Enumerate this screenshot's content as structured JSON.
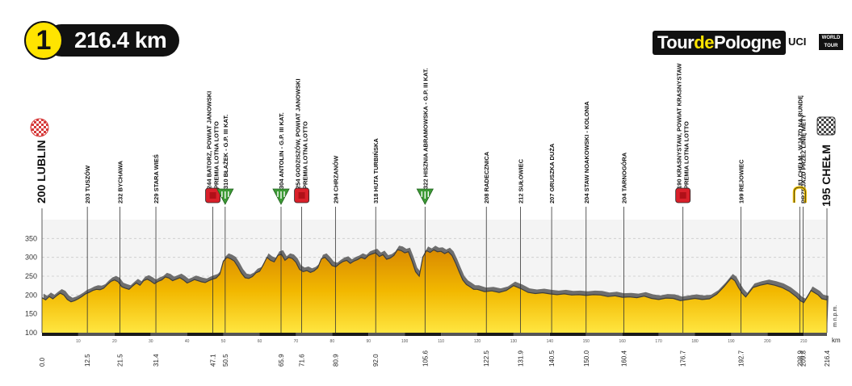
{
  "badge": {
    "stage_number": "1",
    "distance": "216.4 km"
  },
  "brand": {
    "tour_name_a": "Tour",
    "tour_name_b": "de",
    "tour_name_c": "Pologne",
    "uci": "UCI",
    "world_tour": "WORLD TOUR"
  },
  "chart_data": {
    "type": "area",
    "title": "",
    "xlabel": "km",
    "ylabel": "m n.p.m.",
    "xlim": [
      0,
      216.4
    ],
    "ylim": [
      100,
      400
    ],
    "y_ticks": [
      100,
      150,
      200,
      250,
      300,
      350
    ],
    "x_minor_ticks": [
      10,
      20,
      30,
      40,
      50,
      60,
      70,
      80,
      90,
      100,
      110,
      120,
      130,
      140,
      150,
      160,
      170,
      180,
      190,
      200,
      210
    ],
    "x_ticks": [
      {
        "value": 0.0,
        "label": "0.0"
      },
      {
        "value": 12.5,
        "label": "12.5"
      },
      {
        "value": 21.5,
        "label": "21.5"
      },
      {
        "value": 31.4,
        "label": "31.4"
      },
      {
        "value": 47.1,
        "label": "47.1"
      },
      {
        "value": 50.5,
        "label": "50.5"
      },
      {
        "value": 65.9,
        "label": "65.9"
      },
      {
        "value": 71.6,
        "label": "71.6"
      },
      {
        "value": 80.9,
        "label": "80.9"
      },
      {
        "value": 92.0,
        "label": "92.0"
      },
      {
        "value": 105.6,
        "label": "105.6"
      },
      {
        "value": 122.5,
        "label": "122.5"
      },
      {
        "value": 131.9,
        "label": "131.9"
      },
      {
        "value": 140.5,
        "label": "140.5"
      },
      {
        "value": 150.0,
        "label": "150.0"
      },
      {
        "value": 160.4,
        "label": "160.4"
      },
      {
        "value": 176.7,
        "label": "176.7"
      },
      {
        "value": 192.7,
        "label": "192.7"
      },
      {
        "value": 208.9,
        "label": "208.9"
      },
      {
        "value": 209.8,
        "label": "209.8"
      },
      {
        "value": 216.4,
        "label": "216.4"
      }
    ],
    "start": {
      "label": "200 LUBLIN"
    },
    "finish": {
      "label": "195 CHEŁM"
    },
    "waypoints": [
      {
        "km": 12.5,
        "label": "203 TUSZÓW",
        "marker": "none"
      },
      {
        "km": 21.5,
        "label": "232 BYCHAWA",
        "marker": "none"
      },
      {
        "km": 31.4,
        "label": "229 STARA WIEŚ",
        "marker": "none"
      },
      {
        "km": 47.1,
        "label": "244 BATORZ, POWIAT JANOWSKI",
        "sublabel": "PREMIA LOTNA LOTTO",
        "marker": "sprint"
      },
      {
        "km": 50.5,
        "label": "310 BŁAŻEK - G.P. III KAT.",
        "marker": "climb"
      },
      {
        "km": 65.9,
        "label": "304 ANTOLIN - G.P. III KAT.",
        "marker": "climb"
      },
      {
        "km": 71.6,
        "label": "254 GODZISZÓW, POWIAT JANOWSKI",
        "sublabel": "PREMIA LOTNA LOTTO",
        "marker": "sprint"
      },
      {
        "km": 80.9,
        "label": "294 CHRZANÓW",
        "marker": "none"
      },
      {
        "km": 92.0,
        "label": "318 HUTA TURBIŃSKA",
        "marker": "none"
      },
      {
        "km": 105.6,
        "label": "322 HISZNIA ABRAMOWSKA - G.P. III KAT.",
        "marker": "climb"
      },
      {
        "km": 122.5,
        "label": "208 RADECZNICA",
        "marker": "none"
      },
      {
        "km": 131.9,
        "label": "212 SUŁOWIEC",
        "marker": "none"
      },
      {
        "km": 140.5,
        "label": "207 GRUSZKA DUŻA",
        "marker": "none"
      },
      {
        "km": 150.0,
        "label": "204 STAW NOAKOWSKI - KOLONIA",
        "marker": "none"
      },
      {
        "km": 160.4,
        "label": "204 TARNOGÓRA",
        "marker": "none"
      },
      {
        "km": 176.7,
        "label": "190 KRASNYSTAW, POWIAT KRASNYSTAW",
        "sublabel": "PREMIA LOTNA LOTTO",
        "marker": "sprint"
      },
      {
        "km": 192.7,
        "label": "199 REJOWIEC",
        "marker": "none"
      },
      {
        "km": 208.9,
        "label": "181 CHEŁM - WJAZD NA RUNDĘ",
        "marker": "lap"
      },
      {
        "km": 209.8,
        "label": "PRZEJAZD PRZEZ LINIĘ METY",
        "marker": "none"
      }
    ],
    "elevation": {
      "x": [
        0,
        1,
        2,
        3,
        4,
        5,
        6,
        7,
        8,
        9,
        10,
        11,
        12,
        13,
        14,
        15,
        16,
        17,
        18,
        19,
        20,
        21,
        22,
        23,
        24,
        25,
        26,
        27,
        28,
        29,
        30,
        31,
        32,
        33,
        34,
        35,
        36,
        37,
        38,
        39,
        40,
        41,
        42,
        43,
        44,
        45,
        46,
        47,
        48,
        49,
        50,
        51,
        52,
        53,
        54,
        55,
        56,
        57,
        58,
        59,
        60,
        61,
        62,
        63,
        64,
        65,
        66,
        67,
        68,
        69,
        70,
        71,
        72,
        73,
        74,
        75,
        76,
        77,
        78,
        79,
        80,
        81,
        82,
        83,
        84,
        85,
        86,
        87,
        88,
        89,
        90,
        91,
        92,
        93,
        94,
        95,
        96,
        97,
        98,
        99,
        100,
        101,
        102,
        103,
        104,
        105,
        106,
        107,
        108,
        109,
        110,
        111,
        112,
        113,
        114,
        115,
        116,
        117,
        118,
        119,
        120,
        122,
        124,
        126,
        128,
        130,
        132,
        134,
        136,
        138,
        140,
        142,
        144,
        146,
        148,
        150,
        152,
        154,
        156,
        158,
        160,
        162,
        164,
        166,
        168,
        170,
        172,
        174,
        176,
        178,
        180,
        182,
        184,
        186,
        188,
        190,
        191,
        192,
        193,
        194,
        196,
        198,
        200,
        202,
        204,
        206,
        208,
        209,
        210,
        211,
        212,
        213,
        214,
        215,
        216.4
      ],
      "y": [
        193,
        187,
        196,
        190,
        198,
        205,
        200,
        188,
        182,
        185,
        190,
        196,
        203,
        207,
        212,
        215,
        214,
        218,
        228,
        236,
        240,
        235,
        222,
        218,
        215,
        224,
        232,
        226,
        238,
        242,
        237,
        230,
        236,
        240,
        248,
        245,
        238,
        242,
        246,
        240,
        232,
        236,
        241,
        238,
        235,
        233,
        238,
        242,
        245,
        255,
        290,
        300,
        296,
        290,
        275,
        258,
        246,
        244,
        249,
        259,
        263,
        280,
        300,
        292,
        288,
        305,
        308,
        292,
        300,
        297,
        287,
        268,
        262,
        265,
        260,
        264,
        272,
        296,
        300,
        290,
        278,
        275,
        283,
        289,
        292,
        284,
        290,
        294,
        300,
        296,
        305,
        309,
        312,
        302,
        307,
        295,
        298,
        305,
        320,
        318,
        312,
        315,
        290,
        262,
        250,
        301,
        318,
        313,
        320,
        315,
        316,
        310,
        315,
        305,
        285,
        262,
        240,
        228,
        222,
        215,
        215,
        209,
        211,
        207,
        212,
        225,
        217,
        207,
        204,
        206,
        203,
        201,
        203,
        200,
        201,
        199,
        201,
        200,
        196,
        198,
        194,
        195,
        193,
        197,
        191,
        188,
        192,
        191,
        185,
        188,
        191,
        188,
        190,
        202,
        222,
        245,
        238,
        220,
        205,
        195,
        220,
        226,
        230,
        226,
        220,
        210,
        195,
        185,
        180,
        195,
        212,
        206,
        200,
        190,
        187
      ]
    }
  }
}
